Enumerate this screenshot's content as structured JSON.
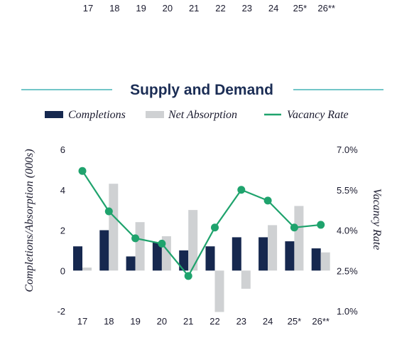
{
  "top_strip": {
    "categories": [
      "17",
      "18",
      "19",
      "20",
      "21",
      "22",
      "23",
      "24",
      "25*",
      "26**"
    ]
  },
  "chart_data": {
    "type": "bar",
    "title": "Supply and Demand",
    "categories": [
      "17",
      "18",
      "19",
      "20",
      "21",
      "22",
      "23",
      "24",
      "25*",
      "26**"
    ],
    "series": [
      {
        "name": "Completions",
        "type": "bar",
        "axis": "left",
        "color": "#16284f",
        "values": [
          1.2,
          2.0,
          0.7,
          1.4,
          1.0,
          1.2,
          1.65,
          1.65,
          1.45,
          1.1
        ]
      },
      {
        "name": "Net Absorption",
        "type": "bar",
        "axis": "left",
        "color": "#cfd1d3",
        "values": [
          0.15,
          4.3,
          2.4,
          1.7,
          3.0,
          -2.05,
          -0.9,
          2.25,
          3.2,
          0.9
        ]
      },
      {
        "name": "Vacancy Rate",
        "type": "line",
        "axis": "right",
        "color": "#1fa36d",
        "values": [
          6.2,
          4.7,
          3.7,
          3.5,
          2.3,
          4.1,
          5.5,
          5.1,
          4.1,
          4.2
        ]
      }
    ],
    "ylabel": "Completions/Absorption (000s)",
    "y2label": "Vacancy Rate",
    "ylim": [
      -2,
      6
    ],
    "y2lim": [
      1.0,
      7.0
    ],
    "yticks": [
      "6",
      "4",
      "2",
      "0",
      "-2"
    ],
    "y2ticks": [
      "7.0%",
      "5.5%",
      "4.0%",
      "2.5%",
      "1.0%"
    ],
    "legend": [
      "Completions",
      "Net Absorption",
      "Vacancy Rate"
    ],
    "legend_position": "top"
  }
}
